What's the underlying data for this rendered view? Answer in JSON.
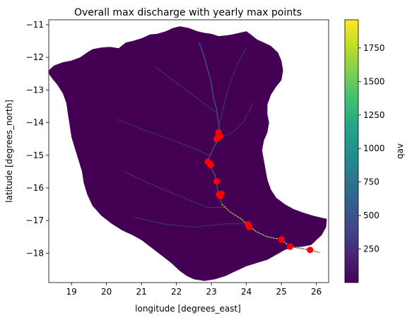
{
  "chart_data": {
    "type": "heatmap",
    "title": "Overall max discharge with yearly max points",
    "xlabel": "longitude [degrees_east]",
    "ylabel": "latitude [degrees_north]",
    "xlim": [
      18.35,
      26.35
    ],
    "ylim": [
      -18.9,
      -10.85
    ],
    "xticks": [
      19,
      20,
      21,
      22,
      23,
      24,
      25,
      26
    ],
    "yticks": [
      -11,
      -12,
      -13,
      -14,
      -15,
      -16,
      -17,
      -18
    ],
    "grid": false,
    "colormap": "viridis",
    "colorbar": {
      "label": "qav",
      "range": [
        0,
        1960
      ],
      "ticks": [
        250,
        500,
        750,
        1000,
        1250,
        1500,
        1750
      ]
    },
    "basin_outline": [
      [
        18.35,
        -12.4
      ],
      [
        18.5,
        -12.25
      ],
      [
        18.75,
        -12.15
      ],
      [
        19.0,
        -12.1
      ],
      [
        19.25,
        -12.0
      ],
      [
        19.45,
        -11.85
      ],
      [
        19.6,
        -11.75
      ],
      [
        19.85,
        -11.7
      ],
      [
        20.1,
        -11.68
      ],
      [
        20.35,
        -11.72
      ],
      [
        20.55,
        -11.55
      ],
      [
        20.75,
        -11.5
      ],
      [
        21.0,
        -11.42
      ],
      [
        21.25,
        -11.3
      ],
      [
        21.45,
        -11.28
      ],
      [
        21.7,
        -11.2
      ],
      [
        21.9,
        -11.1
      ],
      [
        22.1,
        -11.05
      ],
      [
        22.35,
        -11.1
      ],
      [
        22.6,
        -11.2
      ],
      [
        22.8,
        -11.25
      ],
      [
        23.0,
        -11.28
      ],
      [
        23.2,
        -11.35
      ],
      [
        23.4,
        -11.33
      ],
      [
        23.6,
        -11.3
      ],
      [
        23.8,
        -11.25
      ],
      [
        24.0,
        -11.2
      ],
      [
        24.15,
        -11.32
      ],
      [
        24.3,
        -11.45
      ],
      [
        24.5,
        -11.55
      ],
      [
        24.7,
        -11.65
      ],
      [
        24.9,
        -11.85
      ],
      [
        25.0,
        -12.1
      ],
      [
        25.05,
        -12.4
      ],
      [
        25.0,
        -12.7
      ],
      [
        24.85,
        -12.9
      ],
      [
        24.7,
        -13.15
      ],
      [
        24.6,
        -13.45
      ],
      [
        24.6,
        -13.75
      ],
      [
        24.65,
        -14.0
      ],
      [
        24.6,
        -14.3
      ],
      [
        24.5,
        -14.55
      ],
      [
        24.45,
        -14.85
      ],
      [
        24.5,
        -15.15
      ],
      [
        24.55,
        -15.45
      ],
      [
        24.6,
        -15.75
      ],
      [
        24.7,
        -16.05
      ],
      [
        24.85,
        -16.3
      ],
      [
        25.1,
        -16.5
      ],
      [
        25.35,
        -16.65
      ],
      [
        25.6,
        -16.75
      ],
      [
        25.9,
        -16.85
      ],
      [
        26.1,
        -16.9
      ],
      [
        26.3,
        -16.95
      ],
      [
        26.28,
        -17.2
      ],
      [
        26.15,
        -17.45
      ],
      [
        26.0,
        -17.6
      ],
      [
        25.85,
        -17.75
      ],
      [
        25.6,
        -17.8
      ],
      [
        25.35,
        -17.82
      ],
      [
        25.1,
        -17.9
      ],
      [
        24.85,
        -18.05
      ],
      [
        24.6,
        -18.2
      ],
      [
        24.3,
        -18.3
      ],
      [
        24.0,
        -18.4
      ],
      [
        23.7,
        -18.55
      ],
      [
        23.4,
        -18.7
      ],
      [
        23.1,
        -18.8
      ],
      [
        22.8,
        -18.85
      ],
      [
        22.5,
        -18.8
      ],
      [
        22.3,
        -18.7
      ],
      [
        22.1,
        -18.55
      ],
      [
        21.85,
        -18.3
      ],
      [
        21.55,
        -18.05
      ],
      [
        21.25,
        -17.8
      ],
      [
        21.0,
        -17.6
      ],
      [
        20.75,
        -17.45
      ],
      [
        20.45,
        -17.3
      ],
      [
        20.15,
        -17.1
      ],
      [
        19.85,
        -16.85
      ],
      [
        19.6,
        -16.55
      ],
      [
        19.45,
        -16.2
      ],
      [
        19.35,
        -15.85
      ],
      [
        19.3,
        -15.5
      ],
      [
        19.2,
        -15.15
      ],
      [
        19.1,
        -14.8
      ],
      [
        19.0,
        -14.45
      ],
      [
        18.95,
        -14.1
      ],
      [
        18.9,
        -13.75
      ],
      [
        18.85,
        -13.4
      ],
      [
        18.75,
        -13.1
      ],
      [
        18.6,
        -12.85
      ],
      [
        18.45,
        -12.65
      ],
      [
        18.35,
        -12.5
      ]
    ],
    "main_river": [
      [
        22.65,
        -11.55
      ],
      [
        22.8,
        -12.0
      ],
      [
        22.9,
        -12.4
      ],
      [
        23.0,
        -12.8
      ],
      [
        23.05,
        -13.2
      ],
      [
        23.15,
        -13.6
      ],
      [
        23.2,
        -14.0
      ],
      [
        23.25,
        -14.35
      ],
      [
        23.2,
        -14.5
      ],
      [
        23.05,
        -14.8
      ],
      [
        22.92,
        -15.1
      ],
      [
        22.95,
        -15.3
      ],
      [
        23.1,
        -15.6
      ],
      [
        23.15,
        -15.9
      ],
      [
        23.2,
        -16.2
      ],
      [
        23.3,
        -16.5
      ],
      [
        23.55,
        -16.75
      ],
      [
        23.85,
        -16.95
      ],
      [
        24.05,
        -17.15
      ],
      [
        24.3,
        -17.35
      ],
      [
        24.6,
        -17.5
      ],
      [
        25.0,
        -17.58
      ],
      [
        25.25,
        -17.8
      ],
      [
        25.55,
        -17.85
      ],
      [
        25.8,
        -17.9
      ],
      [
        26.1,
        -17.98
      ]
    ],
    "tributaries": [
      [
        [
          21.4,
          -12.3
        ],
        [
          21.9,
          -12.7
        ],
        [
          22.4,
          -13.1
        ],
        [
          22.9,
          -13.5
        ],
        [
          23.15,
          -13.7
        ]
      ],
      [
        [
          24.0,
          -11.7
        ],
        [
          23.7,
          -12.3
        ],
        [
          23.5,
          -12.9
        ],
        [
          23.35,
          -13.5
        ],
        [
          23.22,
          -14.1
        ]
      ],
      [
        [
          20.3,
          -13.9
        ],
        [
          21.0,
          -14.2
        ],
        [
          21.8,
          -14.5
        ],
        [
          22.5,
          -14.8
        ],
        [
          22.95,
          -15.0
        ]
      ],
      [
        [
          24.2,
          -13.4
        ],
        [
          23.9,
          -14.0
        ],
        [
          23.6,
          -14.3
        ],
        [
          23.3,
          -14.45
        ]
      ],
      [
        [
          20.5,
          -15.5
        ],
        [
          21.3,
          -15.9
        ],
        [
          22.2,
          -16.3
        ],
        [
          22.9,
          -16.6
        ],
        [
          23.4,
          -16.6
        ]
      ],
      [
        [
          20.8,
          -16.9
        ],
        [
          21.6,
          -17.1
        ],
        [
          22.5,
          -17.2
        ],
        [
          23.4,
          -17.1
        ],
        [
          23.95,
          -17.1
        ]
      ]
    ],
    "yearly_max_points": [
      [
        23.2,
        -14.3
      ],
      [
        23.22,
        -14.38
      ],
      [
        23.18,
        -14.45
      ],
      [
        23.25,
        -14.42
      ],
      [
        23.15,
        -14.5
      ],
      [
        22.9,
        -15.2
      ],
      [
        22.95,
        -15.25
      ],
      [
        22.98,
        -15.3
      ],
      [
        23.15,
        -15.8
      ],
      [
        23.22,
        -16.2
      ],
      [
        23.25,
        -16.25
      ],
      [
        23.28,
        -16.18
      ],
      [
        24.05,
        -17.12
      ],
      [
        24.08,
        -17.2
      ],
      [
        25.0,
        -17.58
      ],
      [
        25.25,
        -17.8
      ],
      [
        25.82,
        -17.9
      ]
    ],
    "point_color": "#ff0000",
    "basin_fill_color": "#440154",
    "river_low_color": "#3b528b",
    "river_high_color": "#fde725"
  }
}
